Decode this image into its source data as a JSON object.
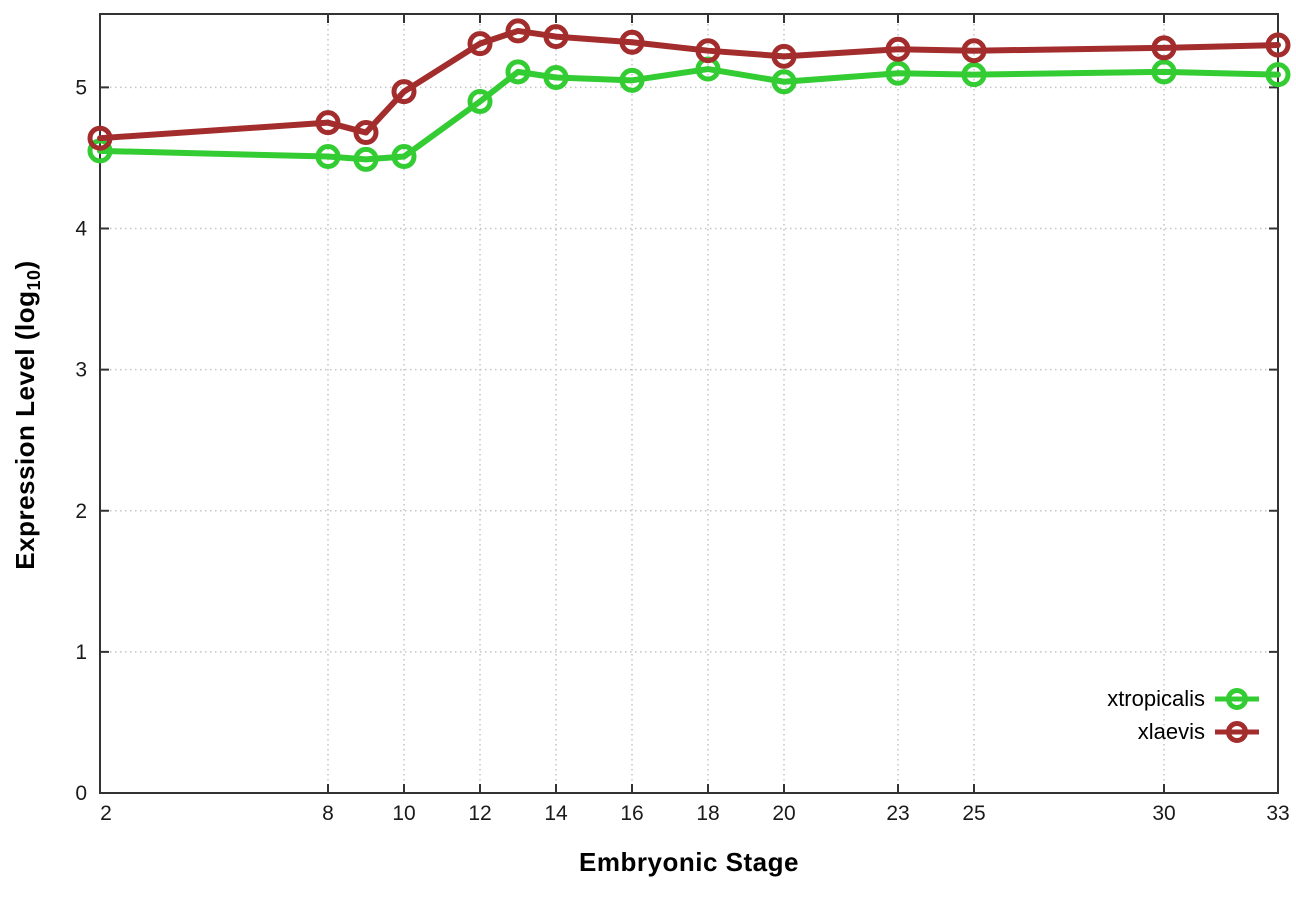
{
  "chart_data": {
    "type": "line",
    "title": "",
    "xlabel": "Embryonic Stage",
    "ylabel": "Expression Level (log10)",
    "ylabel_parts": {
      "main": "Expression Level (log",
      "sub": "10",
      "end": ")"
    },
    "x": [
      2,
      8,
      9,
      10,
      12,
      13,
      14,
      16,
      18,
      20,
      23,
      25,
      30,
      33
    ],
    "xticks": [
      2,
      8,
      10,
      12,
      14,
      16,
      18,
      20,
      23,
      25,
      30,
      33
    ],
    "yticks": [
      0,
      1,
      2,
      3,
      4,
      5
    ],
    "xlim": [
      2,
      33
    ],
    "ylim": [
      0,
      5.52
    ],
    "grid": true,
    "legend_position": "inside-bottom-right",
    "series": [
      {
        "name": "xtropicalis",
        "color": "#33cc33",
        "values": [
          4.55,
          4.51,
          4.49,
          4.51,
          4.9,
          5.11,
          5.07,
          5.05,
          5.13,
          5.04,
          5.1,
          5.09,
          5.11,
          5.09
        ]
      },
      {
        "name": "xlaevis",
        "color": "#a32c2c",
        "values": [
          4.64,
          4.75,
          4.68,
          4.97,
          5.31,
          5.4,
          5.36,
          5.32,
          5.26,
          5.22,
          5.27,
          5.26,
          5.28,
          5.3
        ]
      }
    ],
    "style": {
      "axis_color": "#333333",
      "grid_color": "#c4c4c4",
      "tick_label_color": "#1a1a1a",
      "background": "#ffffff"
    }
  }
}
